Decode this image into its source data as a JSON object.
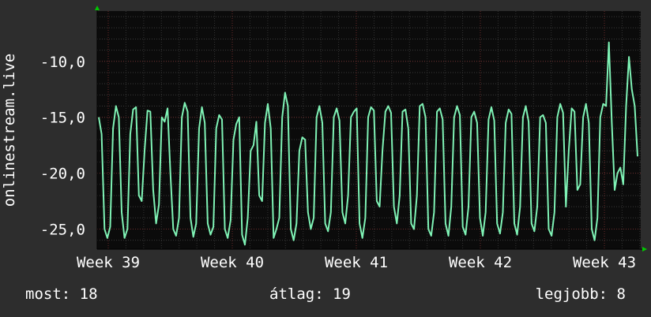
{
  "chart_data": {
    "type": "line",
    "ylabel": "onlinestream.live",
    "x_ticks": [
      "Week 39",
      "Week 40",
      "Week 41",
      "Week 42",
      "Week 43"
    ],
    "y_ticks": [
      -10,
      -15,
      -20,
      -25
    ],
    "y_tick_labels": [
      "-10,0",
      "-15,0",
      "-20,0",
      "-25,0"
    ],
    "ylim": [
      -26.8,
      -5.5
    ],
    "grid": true,
    "series": [
      {
        "color": "#7ff2b5",
        "values": [
          -15.0,
          -16.5,
          -25.0,
          -25.8,
          -24.8,
          -16.0,
          -14.0,
          -15.0,
          -23.5,
          -25.8,
          -25.0,
          -16.5,
          -14.3,
          -14.1,
          -22.0,
          -22.5,
          -18.0,
          -14.4,
          -14.5,
          -21.5,
          -24.5,
          -22.8,
          -15.0,
          -15.4,
          -14.2,
          -20.0,
          -25.0,
          -25.6,
          -24.0,
          -15.0,
          -13.7,
          -14.5,
          -24.0,
          -25.7,
          -24.5,
          -16.0,
          -14.1,
          -15.5,
          -24.5,
          -25.5,
          -24.8,
          -16.0,
          -14.8,
          -15.2,
          -25.0,
          -25.8,
          -24.2,
          -17.0,
          -15.6,
          -15.0,
          -25.5,
          -26.4,
          -24.0,
          -18.0,
          -17.5,
          -15.4,
          -22.0,
          -22.5,
          -15.5,
          -13.8,
          -16.0,
          -25.8,
          -25.0,
          -24.0,
          -15.0,
          -12.8,
          -14.0,
          -25.0,
          -26.0,
          -24.5,
          -18.0,
          -16.8,
          -17.0,
          -23.5,
          -25.0,
          -24.0,
          -15.0,
          -14.0,
          -15.5,
          -24.5,
          -25.2,
          -23.5,
          -15.0,
          -14.2,
          -15.3,
          -23.5,
          -24.5,
          -22.0,
          -15.0,
          -14.5,
          -14.2,
          -24.5,
          -25.8,
          -24.0,
          -15.0,
          -14.1,
          -14.4,
          -22.5,
          -23.0,
          -18.0,
          -14.5,
          -14.0,
          -14.6,
          -23.0,
          -24.5,
          -22.0,
          -14.5,
          -14.3,
          -16.0,
          -24.5,
          -25.0,
          -22.0,
          -14.0,
          -13.8,
          -15.0,
          -25.0,
          -25.6,
          -23.5,
          -14.5,
          -14.2,
          -15.2,
          -24.5,
          -25.6,
          -23.0,
          -15.0,
          -14.0,
          -14.8,
          -24.8,
          -25.5,
          -23.0,
          -15.0,
          -14.5,
          -15.5,
          -24.0,
          -25.6,
          -23.5,
          -15.2,
          -14.1,
          -15.3,
          -24.5,
          -25.4,
          -23.5,
          -15.5,
          -14.3,
          -14.7,
          -24.5,
          -25.5,
          -23.0,
          -15.0,
          -14.0,
          -15.4,
          -24.5,
          -25.2,
          -23.0,
          -15.0,
          -14.8,
          -15.5,
          -25.0,
          -25.6,
          -23.5,
          -15.0,
          -13.8,
          -14.6,
          -23.0,
          -18.0,
          -14.2,
          -14.5,
          -21.5,
          -21.0,
          -15.0,
          -13.8,
          -15.5,
          -25.0,
          -26.0,
          -24.0,
          -15.0,
          -13.8,
          -14.0,
          -8.3,
          -15.5,
          -21.5,
          -20.0,
          -19.5,
          -21.0,
          -14.0,
          -9.6,
          -12.5,
          -14.0,
          -18.5
        ]
      }
    ]
  },
  "footer": {
    "now": "most: 18",
    "avg": "átlag: 19",
    "max": "legjobb: 8"
  },
  "colors": {
    "background": "#2d2d2d",
    "plot_background": "#0b0b0b",
    "line": "#7ff2b5",
    "axis_arrow": "#00c800"
  }
}
